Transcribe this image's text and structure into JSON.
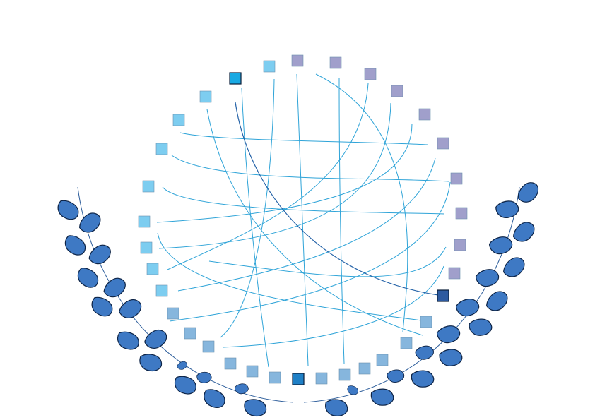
{
  "diagram": {
    "kind": "chord-ring",
    "node_style": "square",
    "highlight_nodes": [
      {
        "name": "node-top-highlight",
        "color": "#18a9e3"
      },
      {
        "name": "node-right-highlight",
        "color": "#2d5aa0"
      },
      {
        "name": "node-bottom-highlight",
        "color": "#1f80c6"
      }
    ],
    "palette": {
      "cyan_node": "#7dcdf0",
      "blue_node": "#86b6dd",
      "lavender_node": "#a09fcb",
      "chord": "#2fa4d8",
      "chord_dark": "#2563a8",
      "laurel_leaf": "#3e79c4",
      "laurel_outline": "#0d2447",
      "laurel_stem": "#2f5f9c"
    }
  },
  "decoration": {
    "laurel_wreath": true
  }
}
